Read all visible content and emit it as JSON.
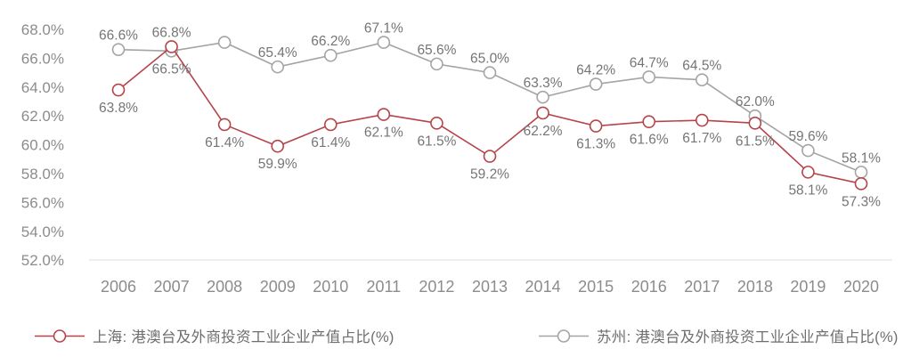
{
  "chart_data": {
    "type": "line",
    "x": [
      "2006",
      "2007",
      "2008",
      "2009",
      "2010",
      "2011",
      "2012",
      "2013",
      "2014",
      "2015",
      "2016",
      "2017",
      "2018",
      "2019",
      "2020"
    ],
    "ylim": [
      52,
      68
    ],
    "ytick_step": 2,
    "yticks": [
      "68.0%",
      "66.0%",
      "64.0%",
      "62.0%",
      "60.0%",
      "58.0%",
      "56.0%",
      "54.0%",
      "52.0%"
    ],
    "grid": "off",
    "legend_position": "bottom",
    "axis_color": "#8c8c8c",
    "axis_line_color": "#dcdcdc",
    "label_color": "#757575",
    "series": [
      {
        "name": "上海: 港澳台及外商投资工业企业产值占比(%)",
        "color": "#b5444a",
        "values": [
          63.8,
          66.8,
          61.4,
          59.9,
          61.4,
          62.1,
          61.5,
          59.2,
          62.2,
          61.3,
          61.6,
          61.7,
          61.5,
          58.1,
          57.3
        ],
        "labels": [
          "63.8%",
          "66.8%",
          "61.4%",
          "59.9%",
          "61.4%",
          "62.1%",
          "61.5%",
          "59.2%",
          "62.2%",
          "61.3%",
          "61.6%",
          "61.7%",
          "61.5%",
          "58.1%",
          "57.3%"
        ],
        "label_side": [
          "below",
          "above",
          "below",
          "below",
          "below",
          "below",
          "below",
          "below",
          "below",
          "below",
          "below",
          "below",
          "below",
          "below",
          "below"
        ]
      },
      {
        "name": "苏州: 港澳台及外商投资工业企业产值占比(%)",
        "color": "#a4a4a4",
        "values": [
          66.6,
          66.5,
          67.1,
          65.4,
          66.2,
          67.1,
          65.6,
          65.0,
          63.3,
          64.2,
          64.7,
          64.5,
          62.0,
          59.6,
          58.1
        ],
        "labels": [
          "66.6%",
          "66.5%",
          null,
          "65.4%",
          "66.2%",
          "67.1%",
          "65.6%",
          "65.0%",
          "63.3%",
          "64.2%",
          "64.7%",
          "64.5%",
          "62.0%",
          "59.6%",
          "58.1%"
        ],
        "label_side": [
          "above",
          "below",
          null,
          "above",
          "above",
          "above",
          "above",
          "above",
          "above",
          "above",
          "above",
          "above",
          "above",
          "above",
          "above"
        ]
      }
    ]
  }
}
